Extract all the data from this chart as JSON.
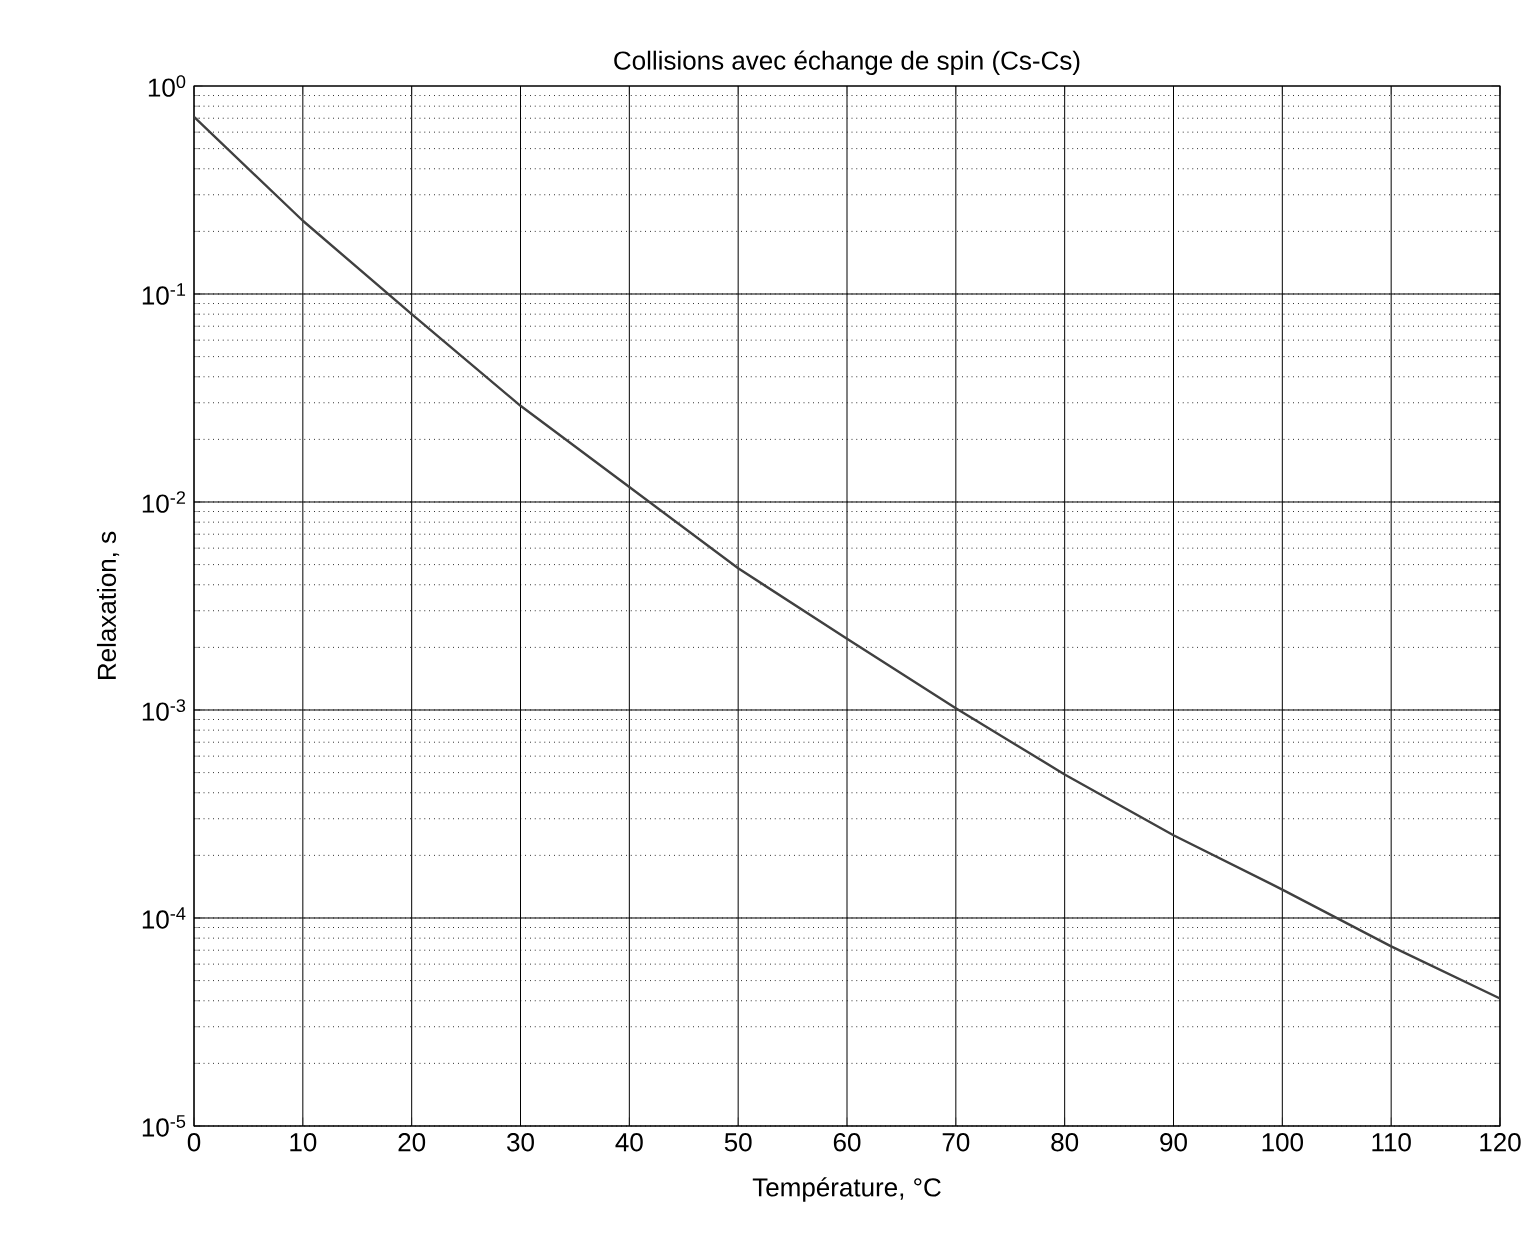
{
  "chart_data": {
    "type": "line",
    "title": "Collisions avec échange de spin (Cs-Cs)",
    "xlabel": "Température, °C",
    "ylabel": "Relaxation, s",
    "x": [
      0,
      10,
      20,
      30,
      40,
      50,
      60,
      70,
      80,
      90,
      100,
      110,
      120
    ],
    "series": [
      {
        "color": "#404040",
        "values": [
          0.71,
          0.225,
          0.08,
          0.029,
          0.0118,
          0.0048,
          0.0022,
          0.00102,
          0.00049,
          0.00025,
          0.000137,
          7.3e-05,
          4.1e-05
        ]
      }
    ],
    "log": "y",
    "grid": true,
    "marker": "none",
    "line_style": "solid",
    "xlim": [
      0,
      120
    ],
    "xticks": [
      0,
      10,
      20,
      30,
      40,
      50,
      60,
      70,
      80,
      90,
      100,
      110,
      120
    ],
    "ylim": [
      1e-05,
      1
    ],
    "yticks": [
      {
        "value": 1e-05,
        "label": "10$^{-5}$"
      },
      {
        "value": 0.0001,
        "label": "10$^{-4}$"
      },
      {
        "value": 0.001,
        "label": "10$^{-3}$"
      },
      {
        "value": 0.01,
        "label": "10$^{-2}$"
      },
      {
        "value": 0.1,
        "label": "10$^{-1}$"
      },
      {
        "value": 1,
        "label": "10$^{0}$"
      }
    ]
  }
}
